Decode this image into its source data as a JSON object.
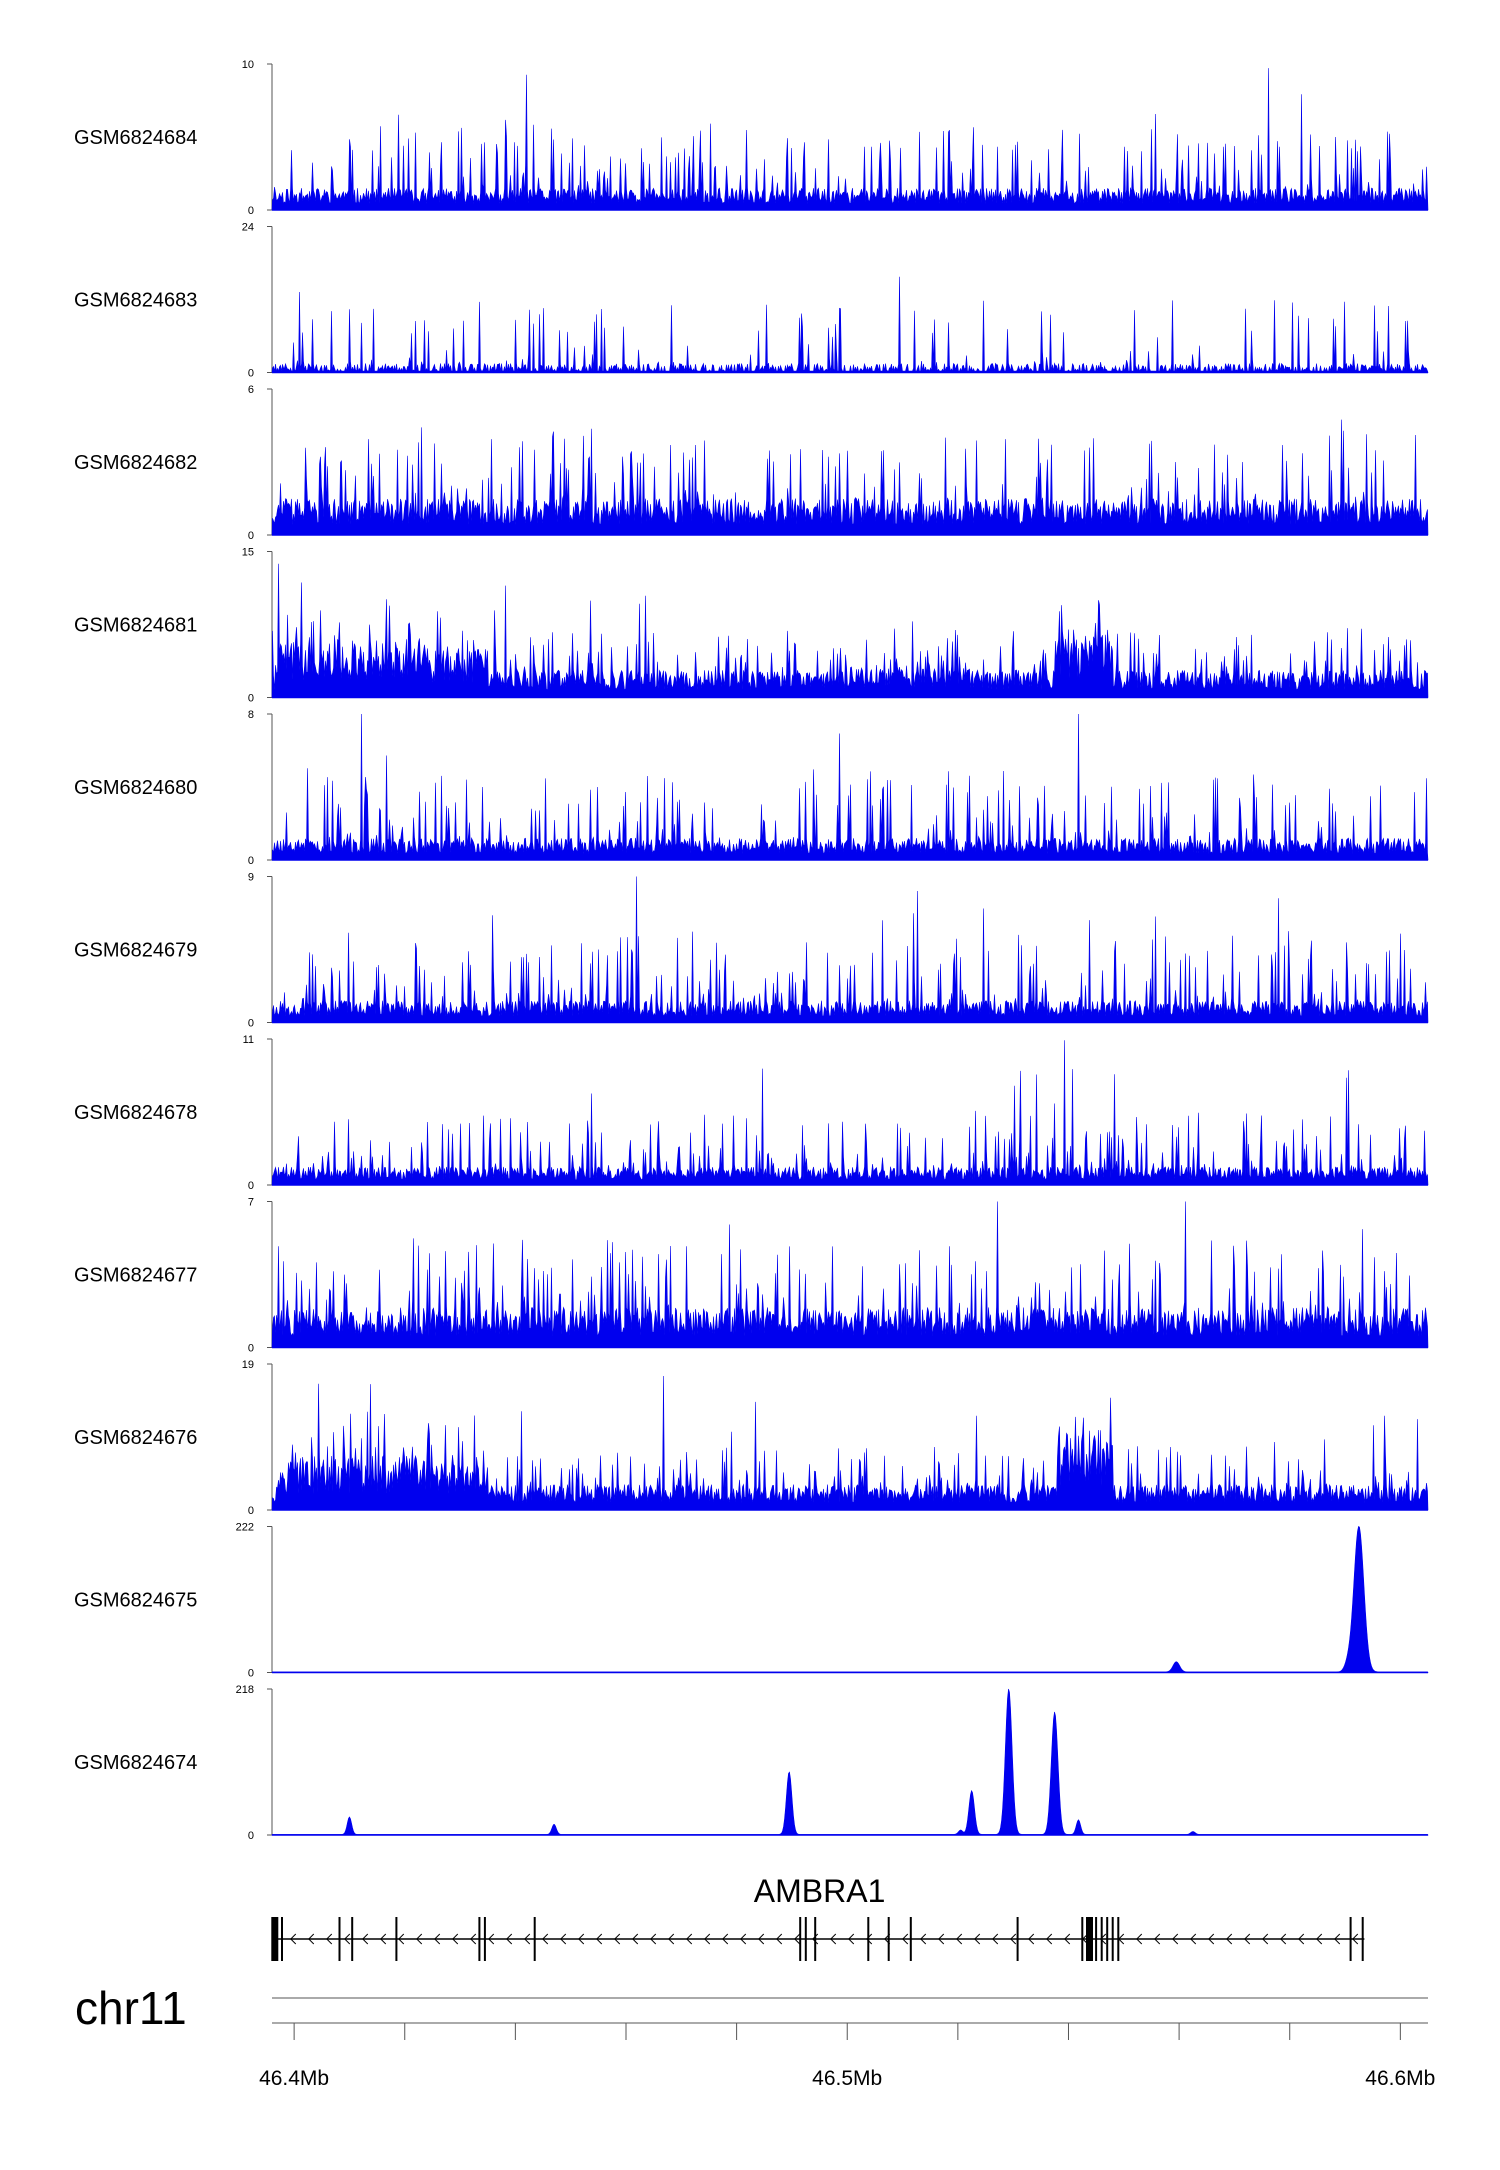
{
  "chart_data": {
    "type": "area",
    "chromosome": "chr11",
    "region_mb": [
      46.396,
      46.605
    ],
    "color": "#0000ee",
    "gene": {
      "name": "AMBRA1",
      "strand": "-",
      "start_mb": 46.3965,
      "end_mb": 46.5935,
      "exons_mb": [
        46.3965,
        46.3978,
        46.4082,
        46.4105,
        46.4185,
        46.4335,
        46.4345,
        46.4435,
        46.4915,
        46.4925,
        46.4942,
        46.5038,
        46.5075,
        46.5115,
        46.5308,
        46.5425,
        46.5438,
        46.545,
        46.546,
        46.547,
        46.548,
        46.549,
        46.591,
        46.5932
      ]
    },
    "axis": {
      "ticks_mb": [
        46.4,
        46.42,
        46.44,
        46.46,
        46.48,
        46.5,
        46.52,
        46.54,
        46.56,
        46.58,
        46.6
      ],
      "tick_labels": [
        {
          "mb": 46.4,
          "label": "46.4Mb"
        },
        {
          "mb": 46.5,
          "label": "46.5Mb"
        },
        {
          "mb": 46.6,
          "label": "46.6Mb"
        }
      ]
    },
    "tracks": [
      {
        "name": "GSM6824684",
        "ymax": 10,
        "ymin": 0,
        "kind": "noise",
        "base": 0.12,
        "spike": 0.45,
        "seed": 11
      },
      {
        "name": "GSM6824683",
        "ymax": 24,
        "ymin": 0,
        "kind": "sparse",
        "base": 0.05,
        "spike": 0.45,
        "seed": 23
      },
      {
        "name": "GSM6824682",
        "ymax": 6,
        "ymin": 0,
        "kind": "noise",
        "base": 0.2,
        "spike": 0.5,
        "seed": 37
      },
      {
        "name": "GSM6824681",
        "ymax": 15,
        "ymin": 0,
        "kind": "broad",
        "base": 0.15,
        "spike": 0.3,
        "seed": 41,
        "domains": [
          [
            46.397,
            46.425,
            0.32
          ],
          [
            46.425,
            46.435,
            0.28
          ],
          [
            46.478,
            46.492,
            0.12
          ],
          [
            46.498,
            46.52,
            0.18
          ],
          [
            46.538,
            46.548,
            0.38
          ]
        ]
      },
      {
        "name": "GSM6824680",
        "ymax": 8,
        "ymin": 0,
        "kind": "noise",
        "base": 0.12,
        "spike": 0.5,
        "seed": 53
      },
      {
        "name": "GSM6824679",
        "ymax": 9,
        "ymin": 0,
        "kind": "noise",
        "base": 0.12,
        "spike": 0.5,
        "seed": 67
      },
      {
        "name": "GSM6824678",
        "ymax": 11,
        "ymin": 0,
        "kind": "noise",
        "base": 0.1,
        "spike": 0.4,
        "seed": 71
      },
      {
        "name": "GSM6824677",
        "ymax": 7,
        "ymin": 0,
        "kind": "noise",
        "base": 0.22,
        "spike": 0.5,
        "seed": 83
      },
      {
        "name": "GSM6824676",
        "ymax": 19,
        "ymin": 0,
        "kind": "broad",
        "base": 0.14,
        "spike": 0.3,
        "seed": 97,
        "domains": [
          [
            46.397,
            46.425,
            0.3
          ],
          [
            46.425,
            46.435,
            0.26
          ],
          [
            46.49,
            46.525,
            0.1
          ],
          [
            46.538,
            46.548,
            0.45
          ]
        ]
      },
      {
        "name": "GSM6824675",
        "ymax": 222,
        "ymin": 0,
        "kind": "peaks",
        "peaks": [
          [
            46.5595,
            0.07,
            0.0006
          ],
          [
            46.5905,
            0.05,
            0.0006
          ],
          [
            46.5925,
            1.0,
            0.0009
          ]
        ]
      },
      {
        "name": "GSM6824674",
        "ymax": 218,
        "ymin": 0,
        "kind": "peaks",
        "peaks": [
          [
            46.41,
            0.12,
            0.0004
          ],
          [
            46.447,
            0.07,
            0.0004
          ],
          [
            46.4895,
            0.43,
            0.0005
          ],
          [
            46.5225,
            0.3,
            0.0005
          ],
          [
            46.5292,
            1.0,
            0.0006
          ],
          [
            46.5375,
            0.84,
            0.0006
          ],
          [
            46.5418,
            0.1,
            0.0004
          ],
          [
            46.5205,
            0.03,
            0.0004
          ],
          [
            46.5625,
            0.02,
            0.0004
          ]
        ]
      }
    ]
  }
}
